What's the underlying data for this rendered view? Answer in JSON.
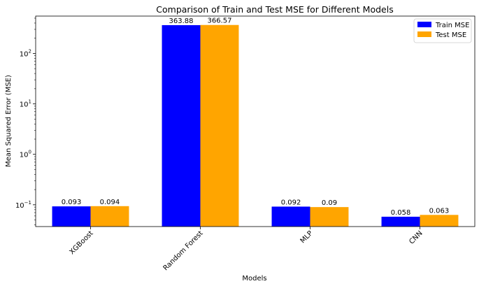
{
  "chart_data": {
    "type": "bar",
    "title": "Comparison of Train and Test MSE for Different Models",
    "xlabel": "Models",
    "ylabel": "Mean Squared Error (MSE)",
    "yscale": "log",
    "ylim": [
      0.037,
      550
    ],
    "y_ticks": [
      {
        "value": 0.1,
        "base": "10",
        "exp": "−1"
      },
      {
        "value": 1,
        "base": "10",
        "exp": "0"
      },
      {
        "value": 10,
        "base": "10",
        "exp": "1"
      },
      {
        "value": 100,
        "base": "10",
        "exp": "2"
      }
    ],
    "categories": [
      "XGBoost",
      "Random Forest",
      "MLP",
      "CNN"
    ],
    "series": [
      {
        "name": "Train MSE",
        "color": "#0000ff",
        "values": [
          0.093,
          363.88,
          0.092,
          0.058
        ],
        "labels": [
          "0.093",
          "363.88",
          "0.092",
          "0.058"
        ]
      },
      {
        "name": "Test MSE",
        "color": "#ffa500",
        "values": [
          0.094,
          366.57,
          0.09,
          0.063
        ],
        "labels": [
          "0.094",
          "366.57",
          "0.09",
          "0.063"
        ]
      }
    ],
    "legend": "top-right",
    "grid": false
  }
}
